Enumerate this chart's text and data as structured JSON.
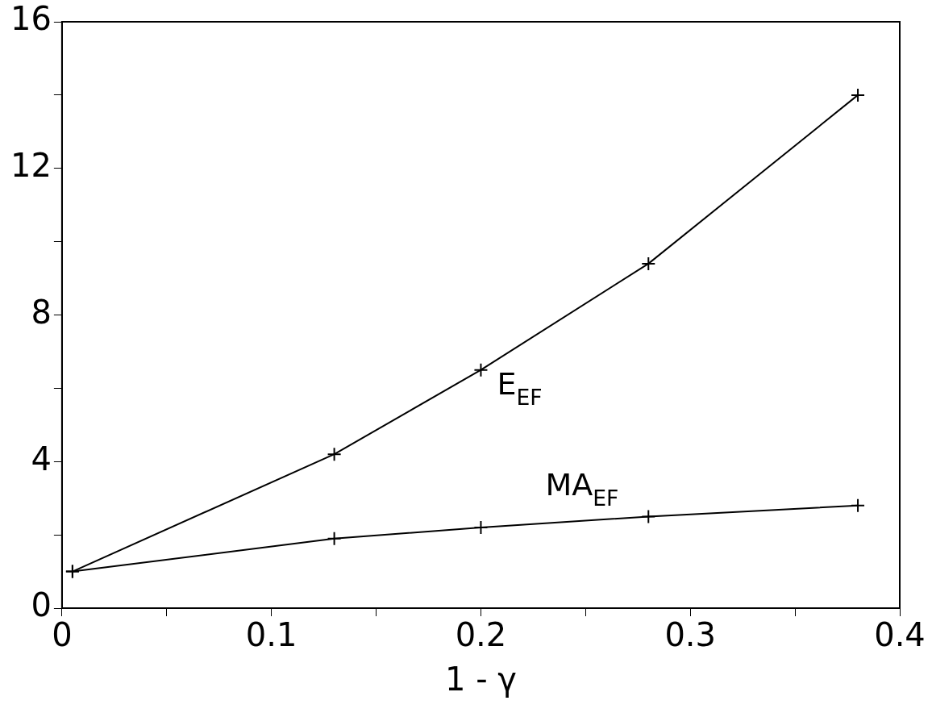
{
  "chart_data": {
    "type": "line",
    "xlabel": "1 - γ",
    "x": [
      0.005,
      0.13,
      0.2,
      0.28,
      0.38
    ],
    "series": [
      {
        "name": "E$_{EF}$",
        "color": "#000000",
        "values": [
          1.0,
          4.2,
          6.5,
          9.4,
          14.0
        ],
        "marker": "cross"
      },
      {
        "name": "MA$_{EF}$",
        "color": "#000000",
        "values": [
          1.0,
          1.9,
          2.2,
          2.5,
          2.8
        ],
        "marker": "cross"
      }
    ],
    "xlim": [
      0,
      0.4
    ],
    "xticks": [
      {
        "value": 0,
        "label": "0"
      },
      {
        "value": 0.05,
        "label": null
      },
      {
        "value": 0.1,
        "label": "0.1"
      },
      {
        "value": 0.15,
        "label": null
      },
      {
        "value": 0.2,
        "label": "0.2"
      },
      {
        "value": 0.25,
        "label": null
      },
      {
        "value": 0.3,
        "label": "0.3"
      },
      {
        "value": 0.35,
        "label": null
      },
      {
        "value": 0.4,
        "label": "0.4"
      }
    ],
    "ylim": [
      0,
      16
    ],
    "yticks": [
      0,
      {
        "value": 2,
        "label": null
      },
      4,
      {
        "value": 6,
        "label": null
      },
      8,
      {
        "value": 10,
        "label": null
      },
      12,
      {
        "value": 14,
        "label": null
      },
      16
    ],
    "grid": false,
    "legend": false,
    "line_style": "solid"
  }
}
